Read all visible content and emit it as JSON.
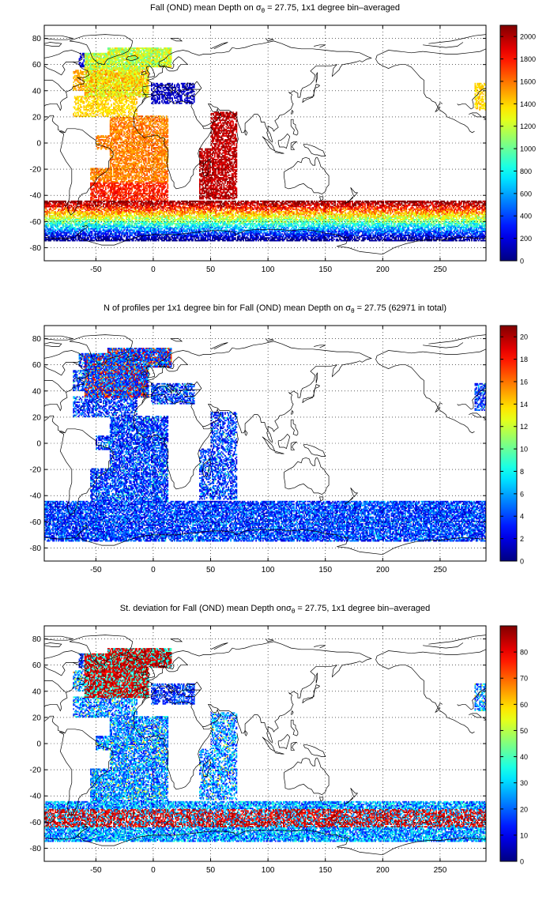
{
  "chart_data": [
    {
      "type": "heatmap",
      "title": {
        "pre": "Fall (OND) mean Depth on σ",
        "sub": "θ",
        "post": " = 27.75, 1x1 degree bin–averaged"
      },
      "xlim": [
        -95,
        290
      ],
      "ylim": [
        -90,
        90
      ],
      "xticks": [
        "-50",
        "0",
        "50",
        "100",
        "150",
        "200",
        "250"
      ],
      "xtick_values": [
        -50,
        0,
        50,
        100,
        150,
        200,
        250
      ],
      "yticks": [
        "80",
        "60",
        "40",
        "20",
        "0",
        "-20",
        "-40",
        "-60",
        "-80"
      ],
      "ytick_values": [
        80,
        60,
        40,
        20,
        0,
        -20,
        -40,
        -60,
        -80
      ],
      "grid": true,
      "colorbar": {
        "min": 0,
        "max": 2100,
        "ticks": [
          "0",
          "200",
          "400",
          "600",
          "800",
          "1000",
          "1200",
          "1400",
          "1600",
          "1800",
          "2000"
        ],
        "tick_values": [
          0,
          200,
          400,
          600,
          800,
          1000,
          1200,
          1400,
          1600,
          1800,
          2000
        ]
      },
      "colormap": "jet",
      "field": "depth"
    },
    {
      "type": "heatmap",
      "title": {
        "pre": "N of profiles per 1x1 degree bin for Fall (OND) mean Depth on σ",
        "sub": "θ",
        "post": " = 27.75 (62971 in total)"
      },
      "xlim": [
        -95,
        290
      ],
      "ylim": [
        -90,
        90
      ],
      "xticks": [
        "-50",
        "0",
        "50",
        "100",
        "150",
        "200",
        "250"
      ],
      "xtick_values": [
        -50,
        0,
        50,
        100,
        150,
        200,
        250
      ],
      "yticks": [
        "80",
        "60",
        "40",
        "20",
        "0",
        "-20",
        "-40",
        "-60",
        "-80"
      ],
      "ytick_values": [
        80,
        60,
        40,
        20,
        0,
        -20,
        -40,
        -60,
        -80
      ],
      "grid": true,
      "colorbar": {
        "min": 0,
        "max": 21,
        "ticks": [
          "0",
          "2",
          "4",
          "6",
          "8",
          "10",
          "12",
          "14",
          "16",
          "18",
          "20"
        ],
        "tick_values": [
          0,
          2,
          4,
          6,
          8,
          10,
          12,
          14,
          16,
          18,
          20
        ]
      },
      "colormap": "jet",
      "field": "count"
    },
    {
      "type": "heatmap",
      "title": {
        "pre": "St. deviation for Fall (OND) mean Depth onσ",
        "sub": "θ",
        "post": " = 27.75, 1x1 degree bin–averaged"
      },
      "xlim": [
        -95,
        290
      ],
      "ylim": [
        -90,
        90
      ],
      "xticks": [
        "-50",
        "0",
        "50",
        "100",
        "150",
        "200",
        "250"
      ],
      "xtick_values": [
        -50,
        0,
        50,
        100,
        150,
        200,
        250
      ],
      "yticks": [
        "80",
        "60",
        "40",
        "20",
        "0",
        "-20",
        "-40",
        "-60",
        "-80"
      ],
      "ytick_values": [
        80,
        60,
        40,
        20,
        0,
        -20,
        -40,
        -60,
        -80
      ],
      "grid": true,
      "colorbar": {
        "min": 0,
        "max": 90,
        "ticks": [
          "0",
          "10",
          "20",
          "30",
          "40",
          "50",
          "60",
          "70",
          "80"
        ],
        "tick_values": [
          0,
          10,
          20,
          30,
          40,
          50,
          60,
          70,
          80
        ]
      },
      "colormap": "jet",
      "field": "std"
    }
  ]
}
